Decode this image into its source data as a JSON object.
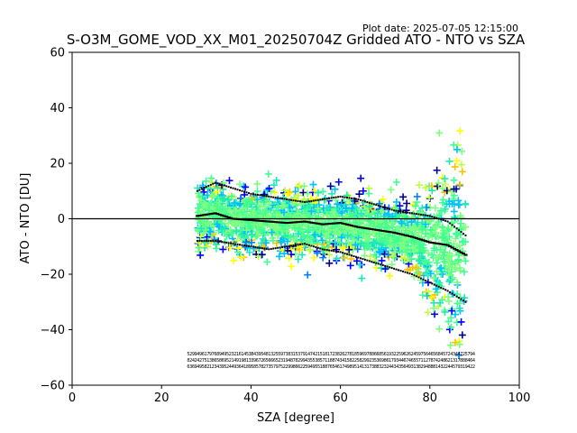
{
  "plot_date": "Plot date: 2025-07-05 12:15:00",
  "chart_data": {
    "type": "scatter",
    "title": "S-O3M_GOME_VOD_XX_M01_20250704Z Gridded ATO - NTO vs SZA",
    "xlabel": "SZA [degree]",
    "ylabel": "ATO - NTO [DU]",
    "xlim": [
      0,
      100
    ],
    "ylim": [
      -60,
      60
    ],
    "xticks": [
      "0",
      "20",
      "40",
      "60",
      "80",
      "100"
    ],
    "yticks": [
      "−60",
      "−40",
      "−20",
      "0",
      "20",
      "40",
      "60"
    ],
    "xtick_values": [
      0,
      20,
      40,
      60,
      80,
      100
    ],
    "ytick_values": [
      -60,
      -40,
      -20,
      0,
      20,
      40,
      60
    ],
    "grid": false,
    "reference_line_y": 0,
    "marker": "+",
    "sza_range": [
      28,
      88
    ],
    "colors": [
      "#00008b",
      "#0000ff",
      "#0080ff",
      "#00bfff",
      "#1de9b6",
      "#40ff90",
      "#7fff7f",
      "#c0ff3f",
      "#ffff00",
      "#ffc000"
    ],
    "mean_line": [
      [
        28,
        1
      ],
      [
        32,
        2
      ],
      [
        36,
        0
      ],
      [
        40,
        -0.5
      ],
      [
        44,
        -1
      ],
      [
        48,
        -1.5
      ],
      [
        52,
        -1
      ],
      [
        56,
        -2
      ],
      [
        60,
        -1.5
      ],
      [
        64,
        -3
      ],
      [
        68,
        -4
      ],
      [
        72,
        -5
      ],
      [
        76,
        -6.5
      ],
      [
        80,
        -8.5
      ],
      [
        84,
        -9.5
      ],
      [
        88,
        -13
      ]
    ],
    "upper_sigma_line": [
      [
        28,
        10
      ],
      [
        32,
        13
      ],
      [
        36,
        11
      ],
      [
        40,
        9
      ],
      [
        44,
        8
      ],
      [
        48,
        7
      ],
      [
        52,
        6
      ],
      [
        56,
        7
      ],
      [
        60,
        8
      ],
      [
        64,
        7
      ],
      [
        68,
        5
      ],
      [
        72,
        3
      ],
      [
        76,
        2
      ],
      [
        80,
        1
      ],
      [
        84,
        -1
      ],
      [
        88,
        -6
      ]
    ],
    "lower_sigma_line": [
      [
        28,
        -8
      ],
      [
        32,
        -8
      ],
      [
        36,
        -9
      ],
      [
        40,
        -10
      ],
      [
        44,
        -11
      ],
      [
        48,
        -10
      ],
      [
        52,
        -9
      ],
      [
        56,
        -11
      ],
      [
        60,
        -12
      ],
      [
        64,
        -14
      ],
      [
        68,
        -16
      ],
      [
        72,
        -18
      ],
      [
        76,
        -20
      ],
      [
        80,
        -23
      ],
      [
        84,
        -26
      ],
      [
        88,
        -30
      ]
    ]
  }
}
